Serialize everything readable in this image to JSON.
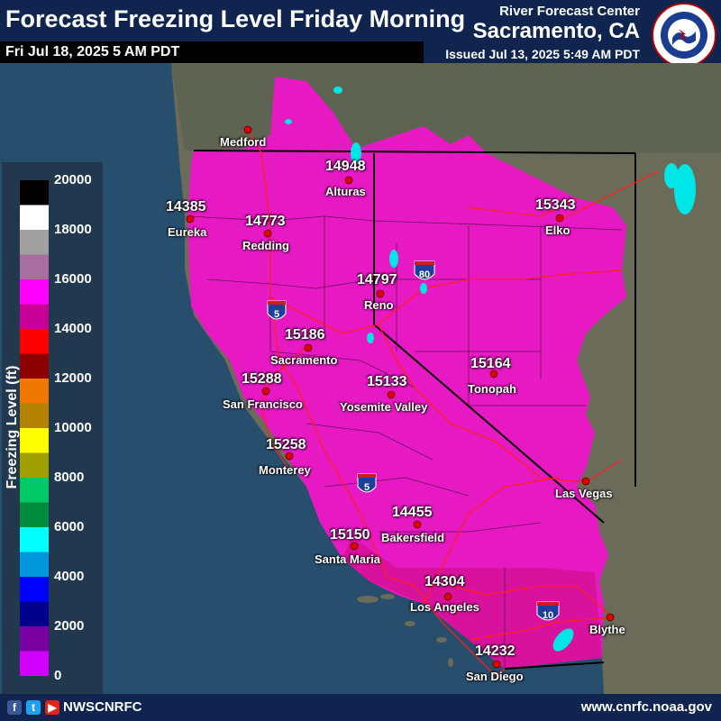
{
  "header": {
    "title": "Forecast Freezing Level Friday Morning",
    "valid_time": "Fri Jul 18, 2025 5 AM PDT",
    "rfc_name": "River Forecast Center",
    "rfc_city": "Sacramento, CA",
    "issued": "Issued Jul 13, 2025 5:49 AM PDT",
    "logo_text": "NATIONAL WEATHER SERVICE"
  },
  "legend": {
    "title": "Freezing Level (ft)",
    "ticks": [
      "20000",
      "18000",
      "16000",
      "14000",
      "12000",
      "10000",
      "8000",
      "6000",
      "4000",
      "2000",
      "0"
    ],
    "colors": [
      "#000000",
      "#ffffff",
      "#a0a0a0",
      "#a86ea0",
      "#ff00ff",
      "#c80096",
      "#ff0000",
      "#8c0000",
      "#f07800",
      "#b48200",
      "#ffff00",
      "#a0a000",
      "#00c864",
      "#008c3c",
      "#00ffff",
      "#0096dc",
      "#0000ff",
      "#00008c",
      "#7800a0",
      "#d200ff"
    ]
  },
  "colors": {
    "freezing_fill": "#e619c3",
    "land": "#6b6b5a",
    "ocean": "#284e6e",
    "roads": "#ff2020",
    "lakes": "#00e5e5"
  },
  "highways": [
    "5",
    "80",
    "5",
    "10"
  ],
  "cities": [
    {
      "name": "Medford",
      "value": ""
    },
    {
      "name": "Alturas",
      "value": "14948"
    },
    {
      "name": "Eureka",
      "value": "14385"
    },
    {
      "name": "Redding",
      "value": "14773"
    },
    {
      "name": "Elko",
      "value": "15343"
    },
    {
      "name": "Reno",
      "value": "14797"
    },
    {
      "name": "Sacramento",
      "value": "15186"
    },
    {
      "name": "San Francisco",
      "value": "15288"
    },
    {
      "name": "Yosemite Valley",
      "value": "15133"
    },
    {
      "name": "Tonopah",
      "value": "15164"
    },
    {
      "name": "Monterey",
      "value": "15258"
    },
    {
      "name": "Las Vegas",
      "value": ""
    },
    {
      "name": "Bakersfield",
      "value": "14455"
    },
    {
      "name": "Santa Maria",
      "value": "15150"
    },
    {
      "name": "Los Angeles",
      "value": "14304"
    },
    {
      "name": "Blythe",
      "value": ""
    },
    {
      "name": "San Diego",
      "value": "14232"
    }
  ],
  "footer": {
    "social_handle": "NWSCNRFC",
    "website": "www.cnrfc.noaa.gov",
    "icons": [
      "facebook-icon",
      "twitter-icon",
      "youtube-icon"
    ]
  }
}
